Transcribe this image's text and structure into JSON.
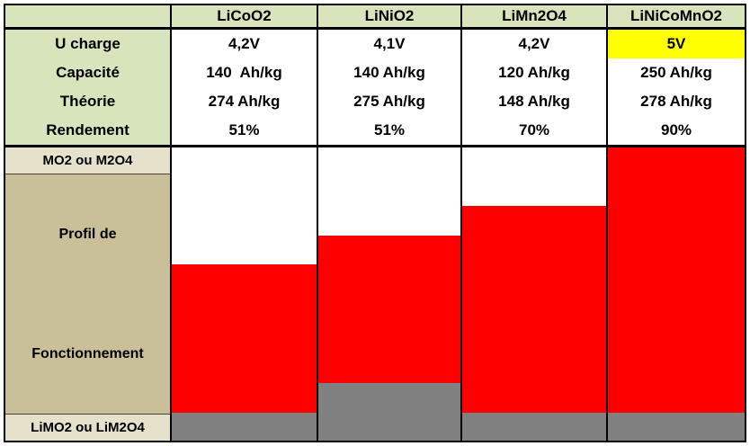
{
  "colors": {
    "header_green": "#d8e4bc",
    "label_cream": "#e6e1cb",
    "label_tan": "#c9c099",
    "highlight_yellow": "#ffff00",
    "bar_red": "#ff0000",
    "bar_gray": "#808080",
    "bar_white": "#ffffff",
    "border_black": "#000000"
  },
  "table": {
    "corner_label": "",
    "columns": [
      "LiCoO2",
      "LiNiO2",
      "LiMn2O4",
      "LiNiCoMnO2"
    ],
    "rows": [
      {
        "label": "U charge",
        "values": [
          "4,2V",
          "4,1V",
          "4,2V",
          "5V"
        ]
      },
      {
        "label": "Capacité",
        "values": [
          "140  Ah/kg",
          "140 Ah/kg",
          "120 Ah/kg",
          "250 Ah/kg"
        ]
      },
      {
        "label": "Théorie",
        "values": [
          "274 Ah/kg",
          "275 Ah/kg",
          "148 Ah/kg",
          "278 Ah/kg"
        ]
      },
      {
        "label": "Rendement",
        "values": [
          "51%",
          "51%",
          "70%",
          "90%"
        ]
      }
    ],
    "highlight": {
      "row": "U charge",
      "column": "LiNiCoMnO2",
      "value": "5V",
      "color": "#ffff00"
    }
  },
  "chart_data": {
    "type": "bar",
    "subtype": "100pct-stacked-vertical-columns",
    "title": "Profil de Fonctionnement",
    "categories": [
      "LiCoO2",
      "LiNiO2",
      "LiMn2O4",
      "LiNiCoMnO2"
    ],
    "unit": "percent of column height",
    "series": [
      {
        "name": "zone vide (MO2 ou M2O4)",
        "color": "#ffffff",
        "values": [
          40,
          30,
          20,
          0
        ]
      },
      {
        "name": "profil de fonctionnement",
        "color": "#ff0000",
        "values": [
          50.5,
          50.5,
          70.5,
          90.5
        ]
      },
      {
        "name": "zone basse (LiMO2 ou LiM2O4)",
        "color": "#808080",
        "values": [
          9.5,
          19.5,
          9.5,
          9.5
        ]
      }
    ],
    "left_labels": {
      "top": "MO2 ou M2O4",
      "middle_line1": "Profil de",
      "middle_line2": "Fonctionnement",
      "bottom": "LiMO2 ou LiM2O4"
    },
    "legend_position": "none",
    "grid": false
  }
}
